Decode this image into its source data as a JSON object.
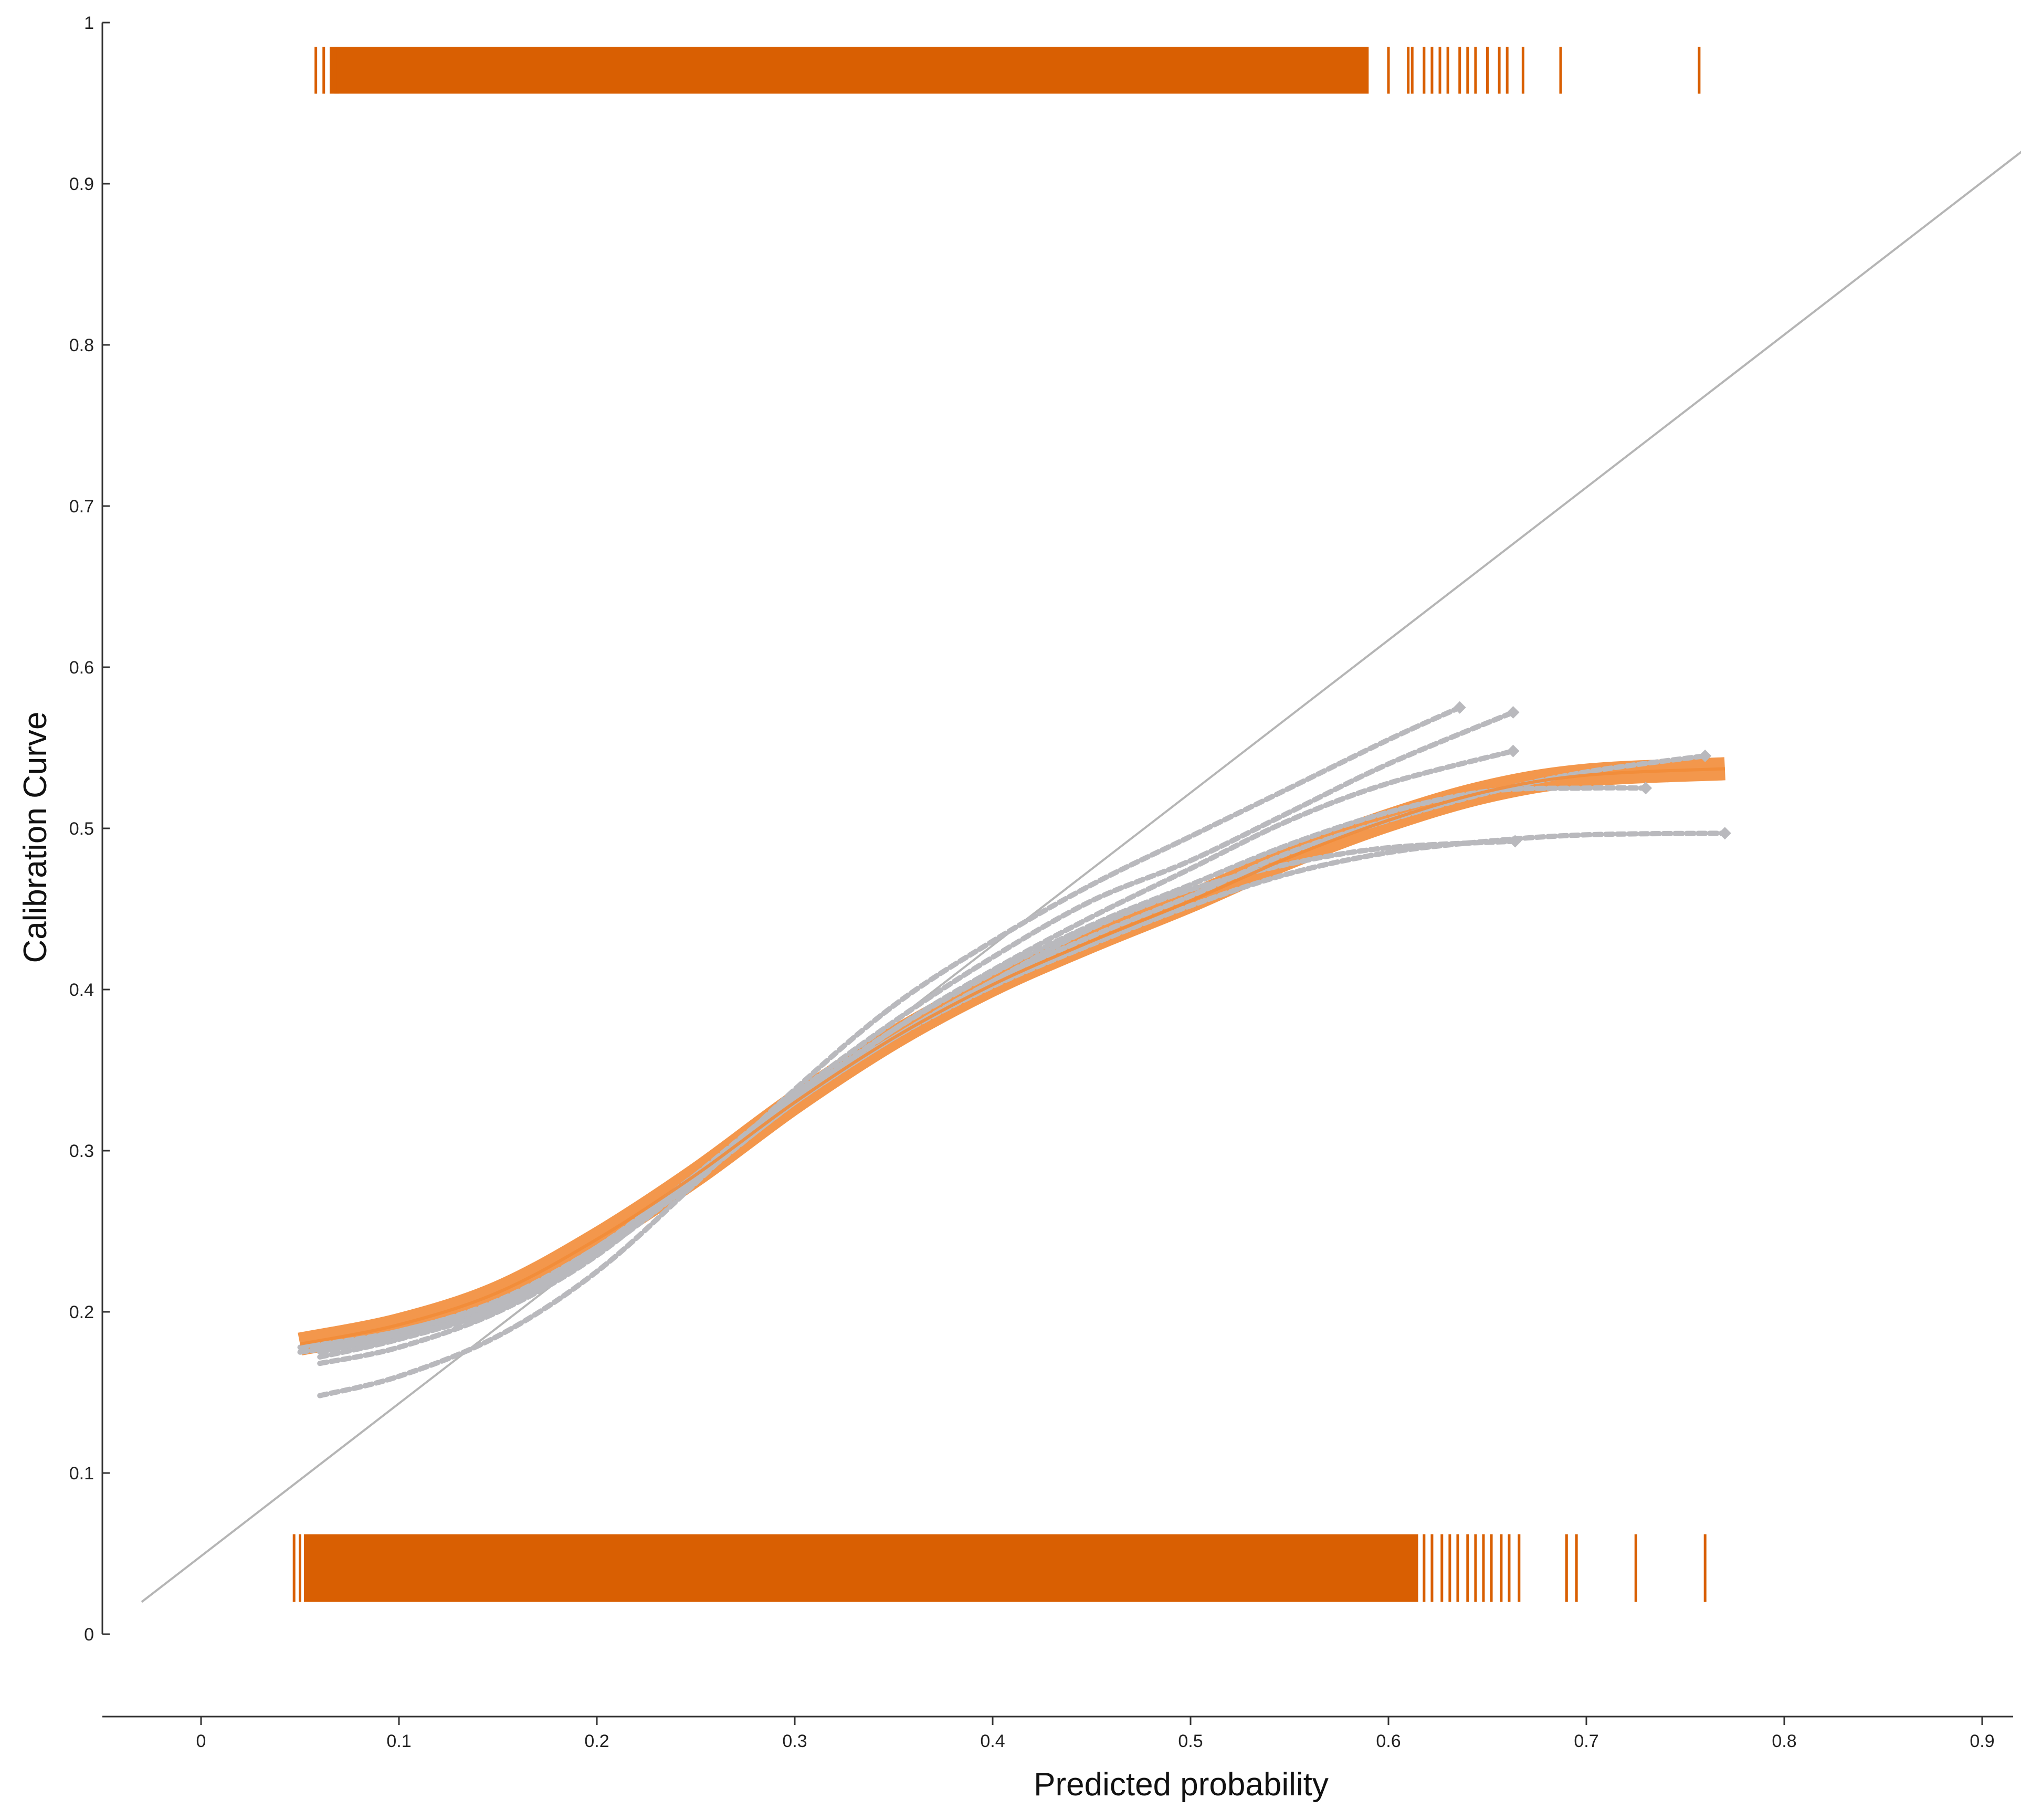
{
  "chart_data": {
    "type": "line",
    "title": "",
    "xlabel": "Predicted probability",
    "ylabel": "Calibration Curve",
    "xlim": [
      -0.05,
      0.92
    ],
    "ylim": [
      0,
      1
    ],
    "x_ticks": [
      "0",
      "0.1",
      "0.2",
      "0.3",
      "0.4",
      "0.5",
      "0.6",
      "0.7",
      "0.8",
      "0.9"
    ],
    "y_ticks": [
      "0",
      "0.1",
      "0.2",
      "0.3",
      "0.4",
      "0.5",
      "0.6",
      "0.7",
      "0.8",
      "0.9",
      "1"
    ],
    "grid": false,
    "legend": "none",
    "colors": {
      "main_curve": "#f28c38",
      "bootstrap_curves": "#b9b9bd",
      "reference_line": "#b5b5b5",
      "rug": "#d95f02",
      "axis": "#333333"
    },
    "reference_line": {
      "x": [
        -0.03,
        0.92
      ],
      "y": [
        0.02,
        0.92
      ]
    },
    "series": [
      {
        "x": [
          0.05,
          0.1,
          0.15,
          0.2,
          0.25,
          0.3,
          0.35,
          0.4,
          0.45,
          0.5,
          0.55,
          0.6,
          0.65,
          0.7,
          0.77
        ],
        "y": [
          0.18,
          0.192,
          0.212,
          0.245,
          0.285,
          0.33,
          0.37,
          0.403,
          0.43,
          0.455,
          0.482,
          0.505,
          0.523,
          0.533,
          0.537
        ]
      },
      {
        "x": [
          0.06,
          0.1,
          0.15,
          0.2,
          0.25,
          0.3,
          0.35,
          0.4,
          0.45,
          0.5,
          0.55,
          0.6,
          0.636
        ],
        "y": [
          0.148,
          0.16,
          0.185,
          0.225,
          0.28,
          0.338,
          0.39,
          0.43,
          0.465,
          0.495,
          0.525,
          0.555,
          0.575
        ]
      },
      {
        "x": [
          0.06,
          0.1,
          0.15,
          0.2,
          0.25,
          0.3,
          0.35,
          0.4,
          0.45,
          0.5,
          0.55,
          0.6,
          0.663
        ],
        "y": [
          0.168,
          0.178,
          0.2,
          0.235,
          0.285,
          0.335,
          0.38,
          0.42,
          0.455,
          0.48,
          0.51,
          0.54,
          0.572
        ]
      },
      {
        "x": [
          0.06,
          0.1,
          0.15,
          0.2,
          0.25,
          0.3,
          0.35,
          0.4,
          0.45,
          0.5,
          0.55,
          0.6,
          0.663
        ],
        "y": [
          0.175,
          0.185,
          0.205,
          0.237,
          0.283,
          0.33,
          0.375,
          0.412,
          0.445,
          0.475,
          0.505,
          0.528,
          0.548
        ]
      },
      {
        "x": [
          0.05,
          0.1,
          0.15,
          0.2,
          0.25,
          0.3,
          0.35,
          0.4,
          0.45,
          0.5,
          0.55,
          0.6,
          0.65,
          0.7,
          0.76
        ],
        "y": [
          0.178,
          0.188,
          0.207,
          0.24,
          0.283,
          0.33,
          0.37,
          0.405,
          0.433,
          0.458,
          0.485,
          0.505,
          0.522,
          0.535,
          0.545
        ]
      },
      {
        "x": [
          0.05,
          0.1,
          0.15,
          0.2,
          0.25,
          0.3,
          0.35,
          0.4,
          0.45,
          0.5,
          0.55,
          0.6,
          0.65,
          0.7,
          0.77
        ],
        "y": [
          0.175,
          0.185,
          0.203,
          0.237,
          0.282,
          0.33,
          0.37,
          0.402,
          0.428,
          0.452,
          0.472,
          0.485,
          0.492,
          0.496,
          0.497
        ]
      },
      {
        "x": [
          0.06,
          0.1,
          0.15,
          0.2,
          0.25,
          0.3,
          0.35,
          0.4,
          0.45,
          0.5,
          0.55,
          0.6,
          0.664
        ],
        "y": [
          0.178,
          0.188,
          0.206,
          0.24,
          0.285,
          0.33,
          0.37,
          0.405,
          0.438,
          0.462,
          0.478,
          0.488,
          0.492
        ]
      },
      {
        "x": [
          0.06,
          0.1,
          0.15,
          0.2,
          0.25,
          0.3,
          0.35,
          0.4,
          0.45,
          0.5,
          0.55,
          0.6,
          0.65,
          0.7,
          0.73
        ],
        "y": [
          0.172,
          0.183,
          0.202,
          0.236,
          0.282,
          0.332,
          0.375,
          0.41,
          0.44,
          0.465,
          0.49,
          0.51,
          0.523,
          0.525,
          0.525
        ]
      }
    ],
    "rug_top": {
      "dense_range": [
        0.065,
        0.59
      ],
      "ticks": [
        0.058,
        0.062,
        0.068,
        0.069,
        0.6,
        0.61,
        0.612,
        0.618,
        0.622,
        0.626,
        0.63,
        0.636,
        0.64,
        0.644,
        0.65,
        0.656,
        0.66,
        0.668,
        0.687,
        0.757
      ]
    },
    "rug_bottom": {
      "dense_range": [
        0.052,
        0.615
      ],
      "ticks": [
        0.047,
        0.05,
        0.618,
        0.622,
        0.627,
        0.631,
        0.635,
        0.64,
        0.644,
        0.648,
        0.652,
        0.657,
        0.661,
        0.666,
        0.69,
        0.695,
        0.725,
        0.76
      ]
    }
  }
}
